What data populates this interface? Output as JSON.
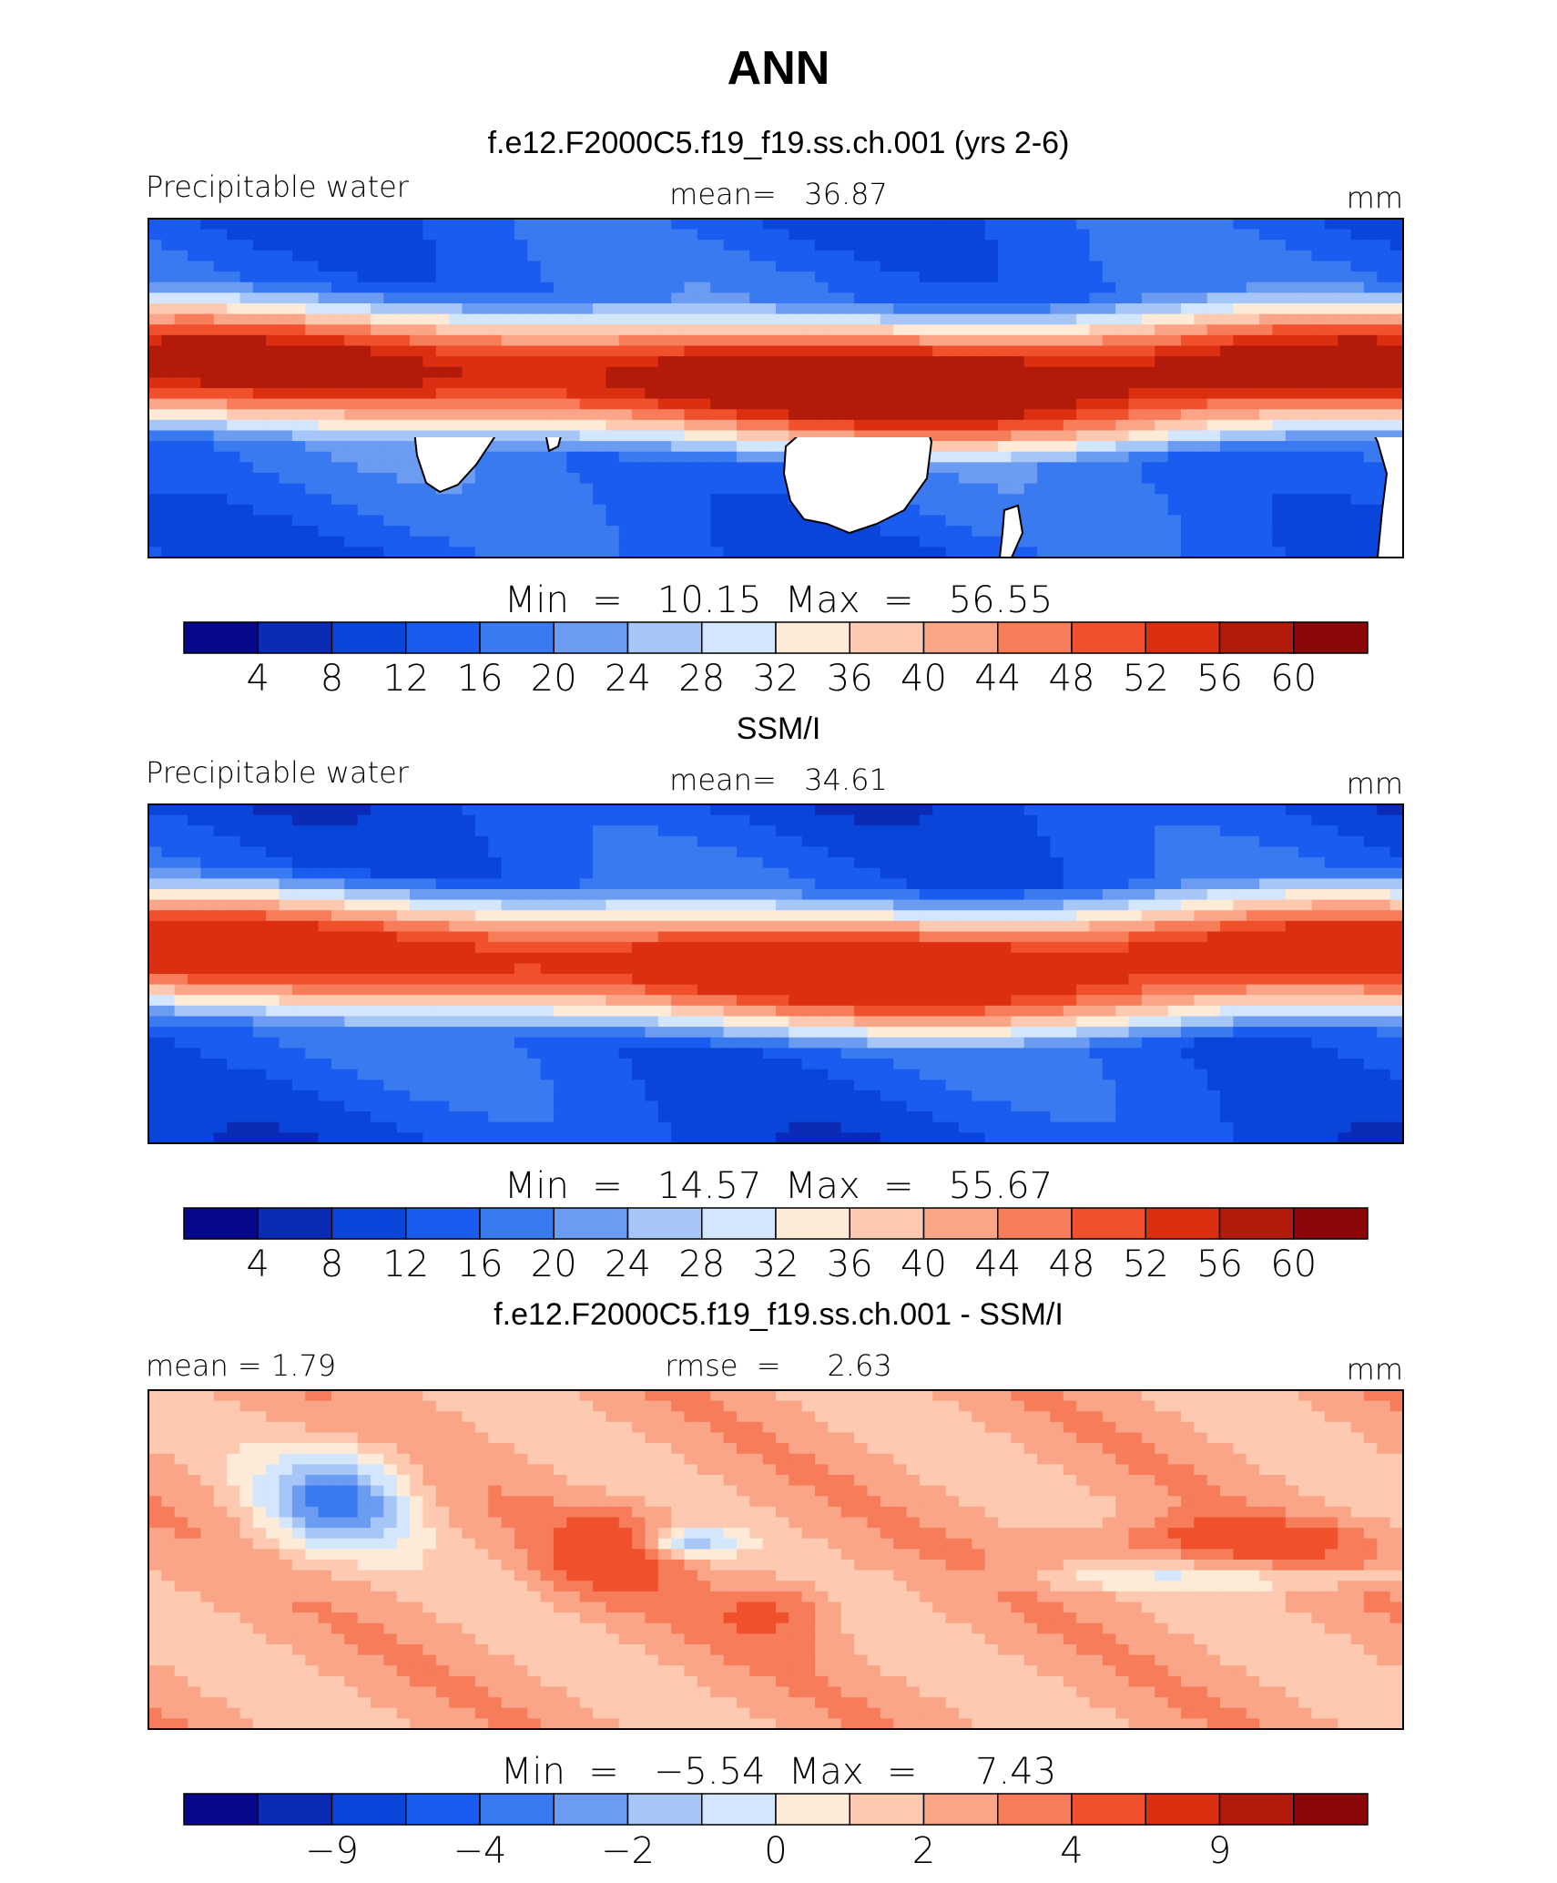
{
  "figure": {
    "title": "ANN",
    "land_mask_color": "#ffffff",
    "coastline_color": "#000000"
  },
  "chart_data": [
    {
      "type": "heatmap",
      "panel_title": "f.e12.F2000C5.f19_f19.ss.ch.001 (yrs 2-6)",
      "variable": "Precipitable water",
      "stat_left": "",
      "stat_center": "mean=   36.87",
      "units": "mm",
      "minmax_text": "Min  =   10.15  Max  =   56.55",
      "min": 10.15,
      "max": 56.55,
      "mean": 36.87,
      "field": "moist_tropics",
      "colorbar": {
        "colors": [
          "#08088c",
          "#0b2bb7",
          "#0a45da",
          "#1a5cf0",
          "#3a7af0",
          "#6b9cf2",
          "#a6c6f7",
          "#d3e6fb",
          "#fdebd8",
          "#fdc9b0",
          "#fba588",
          "#f77c5a",
          "#f0502b",
          "#dc2f12",
          "#b21a0a",
          "#8c0707"
        ],
        "labels": [
          "4",
          "8",
          "12",
          "16",
          "20",
          "24",
          "28",
          "32",
          "36",
          "40",
          "44",
          "48",
          "52",
          "56",
          "60"
        ]
      },
      "fill_level_edges": [
        0,
        4,
        8,
        12,
        16,
        20,
        24,
        28,
        32,
        36,
        40,
        44,
        48,
        52,
        56,
        60,
        100
      ]
    },
    {
      "type": "heatmap",
      "panel_title": "SSM/I",
      "variable": "Precipitable water",
      "stat_left": "",
      "stat_center": "mean=   34.61",
      "units": "mm",
      "minmax_text": "Min  =   14.57  Max  =   55.67",
      "min": 14.57,
      "max": 55.67,
      "mean": 34.61,
      "field": "moist_tropics_obs",
      "colorbar": {
        "colors": [
          "#08088c",
          "#0b2bb7",
          "#0a45da",
          "#1a5cf0",
          "#3a7af0",
          "#6b9cf2",
          "#a6c6f7",
          "#d3e6fb",
          "#fdebd8",
          "#fdc9b0",
          "#fba588",
          "#f77c5a",
          "#f0502b",
          "#dc2f12",
          "#b21a0a",
          "#8c0707"
        ],
        "labels": [
          "4",
          "8",
          "12",
          "16",
          "20",
          "24",
          "28",
          "32",
          "36",
          "40",
          "44",
          "48",
          "52",
          "56",
          "60"
        ]
      },
      "fill_level_edges": [
        0,
        4,
        8,
        12,
        16,
        20,
        24,
        28,
        32,
        36,
        40,
        44,
        48,
        52,
        56,
        60,
        100
      ]
    },
    {
      "type": "heatmap",
      "panel_title": "f.e12.F2000C5.f19_f19.ss.ch.001 - SSM/I",
      "variable": "",
      "stat_left": "mean  =     1.79",
      "stat_center": "rmse  =     2.63",
      "units": "mm",
      "minmax_text": "Min  =   −5.54  Max  =     7.43",
      "min": -5.54,
      "max": 7.43,
      "mean": 1.79,
      "rmse": 2.63,
      "field": "difference",
      "colorbar": {
        "colors": [
          "#08088c",
          "#0b2bb7",
          "#0a45da",
          "#1a5cf0",
          "#3a7af0",
          "#6b9cf2",
          "#a6c6f7",
          "#d3e6fb",
          "#fdebd8",
          "#fdc9b0",
          "#fba588",
          "#f77c5a",
          "#f0502b",
          "#dc2f12",
          "#b21a0a",
          "#8c0707"
        ],
        "labels": [
          "",
          "−9",
          "",
          "−4",
          "",
          "−2",
          "",
          "0",
          "",
          "2",
          "",
          "4",
          "",
          "9",
          ""
        ]
      },
      "fill_level_edges": [
        -20,
        -12,
        -9,
        -6,
        -4,
        -3,
        -2,
        -1,
        0,
        1,
        2,
        3,
        4,
        6,
        9,
        12,
        20
      ]
    }
  ]
}
